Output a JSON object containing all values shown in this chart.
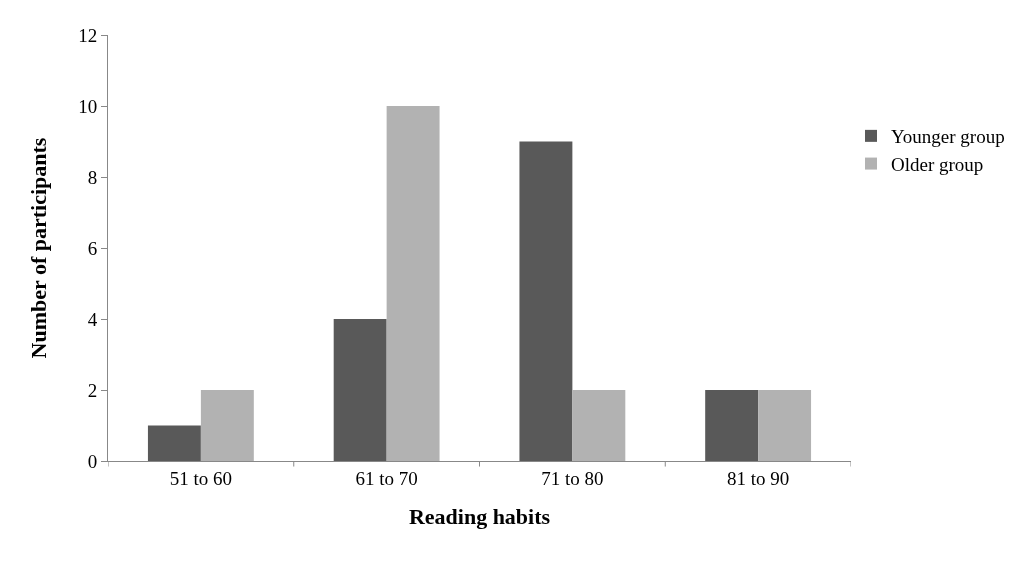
{
  "chart_data": {
    "type": "bar",
    "xlabel": "Reading habits",
    "ylabel": "Number of participants",
    "categories": [
      "51 to 60",
      "61 to 70",
      "71 to 80",
      "81 to 90"
    ],
    "series": [
      {
        "name": "Younger group",
        "color": "#595959",
        "values": [
          1,
          4,
          9,
          2
        ]
      },
      {
        "name": "Older group",
        "color": "#b2b2b2",
        "values": [
          2,
          10,
          2,
          2
        ]
      }
    ],
    "ylim": [
      0,
      12
    ],
    "yticks": [
      0,
      2,
      4,
      6,
      8,
      10,
      12
    ],
    "grid": false,
    "legend": "right"
  }
}
